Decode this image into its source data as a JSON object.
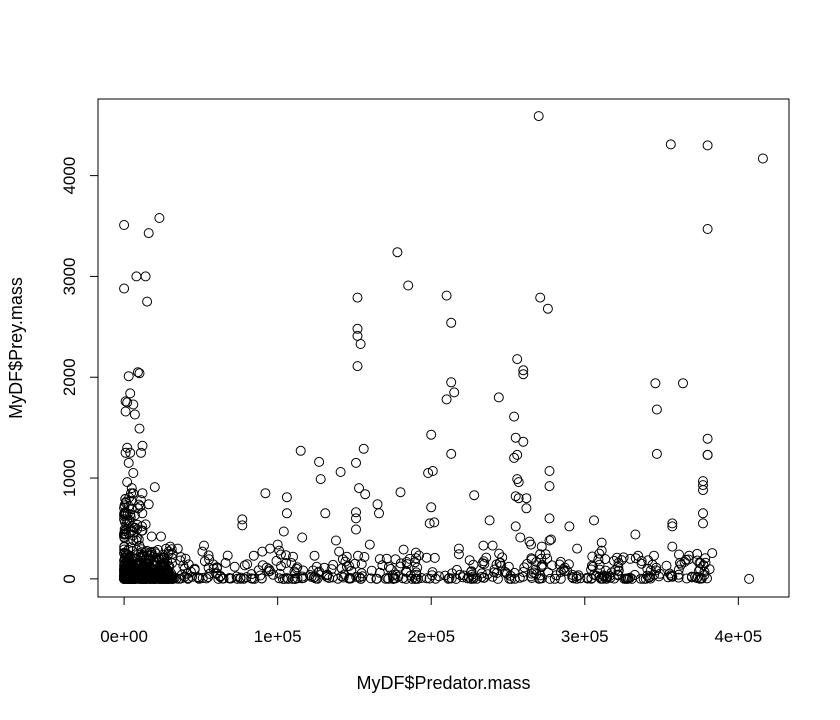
{
  "chart_data": {
    "type": "scatter",
    "title": "",
    "xlabel": "MyDF$Predator.mass",
    "ylabel": "MyDF$Prey.mass",
    "xlim": [
      -17000,
      433000
    ],
    "ylim": [
      -180,
      4760
    ],
    "x_ticks": [
      {
        "value": 0,
        "label": "0e+00"
      },
      {
        "value": 100000,
        "label": "1e+05"
      },
      {
        "value": 200000,
        "label": "2e+05"
      },
      {
        "value": 300000,
        "label": "3e+05"
      },
      {
        "value": 400000,
        "label": "4e+05"
      }
    ],
    "y_ticks": [
      {
        "value": 0,
        "label": "0"
      },
      {
        "value": 1000,
        "label": "1000"
      },
      {
        "value": 2000,
        "label": "2000"
      },
      {
        "value": 3000,
        "label": "3000"
      },
      {
        "value": 4000,
        "label": "4000"
      }
    ],
    "marker": "open-circle",
    "grid": false,
    "legend": "none",
    "points": [
      [
        0,
        3510
      ],
      [
        0,
        2880
      ],
      [
        8000,
        3000
      ],
      [
        14000,
        3000
      ],
      [
        16000,
        3430
      ],
      [
        23000,
        3580
      ],
      [
        15000,
        2750
      ],
      [
        9000,
        2050
      ],
      [
        10000,
        2040
      ],
      [
        3000,
        2010
      ],
      [
        4000,
        1840
      ],
      [
        1000,
        1760
      ],
      [
        2000,
        1750
      ],
      [
        6000,
        1730
      ],
      [
        7000,
        1630
      ],
      [
        1000,
        1660
      ],
      [
        12000,
        1320
      ],
      [
        10000,
        1490
      ],
      [
        2000,
        1300
      ],
      [
        1000,
        1250
      ],
      [
        4000,
        1250
      ],
      [
        3000,
        1150
      ],
      [
        11000,
        1250
      ],
      [
        6000,
        1050
      ],
      [
        20000,
        910
      ],
      [
        2000,
        960
      ],
      [
        5000,
        900
      ],
      [
        12000,
        850
      ],
      [
        16000,
        740
      ],
      [
        3000,
        720
      ],
      [
        9000,
        700
      ],
      [
        14000,
        540
      ],
      [
        4000,
        640
      ],
      [
        7000,
        630
      ],
      [
        12000,
        480
      ],
      [
        2000,
        580
      ],
      [
        5000,
        520
      ],
      [
        18000,
        420
      ],
      [
        24000,
        420
      ],
      [
        3000,
        450
      ],
      [
        8000,
        380
      ],
      [
        30000,
        320
      ],
      [
        35000,
        300
      ],
      [
        29000,
        250
      ],
      [
        25000,
        150
      ],
      [
        52000,
        330
      ],
      [
        51000,
        270
      ],
      [
        40000,
        200
      ],
      [
        46000,
        90
      ],
      [
        55000,
        110
      ],
      [
        60000,
        50
      ],
      [
        72000,
        120
      ],
      [
        77000,
        590
      ],
      [
        77000,
        530
      ],
      [
        92000,
        850
      ],
      [
        95000,
        300
      ],
      [
        90000,
        270
      ],
      [
        100000,
        340
      ],
      [
        101000,
        280
      ],
      [
        104000,
        470
      ],
      [
        106000,
        810
      ],
      [
        106000,
        650
      ],
      [
        110000,
        220
      ],
      [
        115000,
        1270
      ],
      [
        116000,
        410
      ],
      [
        124000,
        230
      ],
      [
        127000,
        1160
      ],
      [
        128000,
        990
      ],
      [
        131000,
        650
      ],
      [
        138000,
        380
      ],
      [
        140000,
        270
      ],
      [
        141000,
        1060
      ],
      [
        145000,
        220
      ],
      [
        151000,
        1150
      ],
      [
        152000,
        2790
      ],
      [
        152000,
        2480
      ],
      [
        152000,
        2410
      ],
      [
        154000,
        2330
      ],
      [
        152000,
        2110
      ],
      [
        153000,
        900
      ],
      [
        151000,
        660
      ],
      [
        151000,
        600
      ],
      [
        151000,
        490
      ],
      [
        156000,
        1290
      ],
      [
        157000,
        840
      ],
      [
        165000,
        740
      ],
      [
        166000,
        650
      ],
      [
        160000,
        340
      ],
      [
        171000,
        200
      ],
      [
        178000,
        3240
      ],
      [
        180000,
        860
      ],
      [
        185000,
        2910
      ],
      [
        182000,
        290
      ],
      [
        190000,
        260
      ],
      [
        197000,
        210
      ],
      [
        200000,
        1430
      ],
      [
        198000,
        1050
      ],
      [
        201000,
        1070
      ],
      [
        200000,
        710
      ],
      [
        199000,
        550
      ],
      [
        202000,
        560
      ],
      [
        210000,
        2810
      ],
      [
        210000,
        1780
      ],
      [
        213000,
        2540
      ],
      [
        213000,
        1950
      ],
      [
        215000,
        1850
      ],
      [
        213000,
        1240
      ],
      [
        218000,
        300
      ],
      [
        228000,
        830
      ],
      [
        234000,
        330
      ],
      [
        238000,
        580
      ],
      [
        240000,
        330
      ],
      [
        245000,
        160
      ],
      [
        244000,
        1800
      ],
      [
        256000,
        2180
      ],
      [
        254000,
        1610
      ],
      [
        255000,
        1400
      ],
      [
        254000,
        1200
      ],
      [
        256000,
        1230
      ],
      [
        256000,
        990
      ],
      [
        257000,
        960
      ],
      [
        255000,
        820
      ],
      [
        257000,
        800
      ],
      [
        255000,
        520
      ],
      [
        258000,
        410
      ],
      [
        260000,
        2070
      ],
      [
        260000,
        2030
      ],
      [
        260000,
        1360
      ],
      [
        262000,
        800
      ],
      [
        262000,
        700
      ],
      [
        264000,
        370
      ],
      [
        265000,
        340
      ],
      [
        270000,
        4590
      ],
      [
        271000,
        2790
      ],
      [
        272000,
        320
      ],
      [
        276000,
        2680
      ],
      [
        277000,
        1070
      ],
      [
        277000,
        920
      ],
      [
        277000,
        600
      ],
      [
        277000,
        380
      ],
      [
        278000,
        390
      ],
      [
        290000,
        520
      ],
      [
        295000,
        300
      ],
      [
        306000,
        580
      ],
      [
        311000,
        360
      ],
      [
        311000,
        280
      ],
      [
        321000,
        210
      ],
      [
        322000,
        160
      ],
      [
        333000,
        440
      ],
      [
        337000,
        150
      ],
      [
        346000,
        1940
      ],
      [
        347000,
        1680
      ],
      [
        347000,
        1240
      ],
      [
        349000,
        50
      ],
      [
        356000,
        4310
      ],
      [
        357000,
        550
      ],
      [
        357000,
        520
      ],
      [
        357000,
        320
      ],
      [
        357000,
        20
      ],
      [
        364000,
        1940
      ],
      [
        377000,
        970
      ],
      [
        377000,
        930
      ],
      [
        377000,
        880
      ],
      [
        377000,
        650
      ],
      [
        377000,
        550
      ],
      [
        378000,
        70
      ],
      [
        378000,
        40
      ],
      [
        380000,
        4300
      ],
      [
        380000,
        3470
      ],
      [
        380000,
        1390
      ],
      [
        380000,
        1230
      ],
      [
        380000,
        1230
      ],
      [
        407000,
        0
      ],
      [
        416000,
        4170
      ]
    ]
  }
}
